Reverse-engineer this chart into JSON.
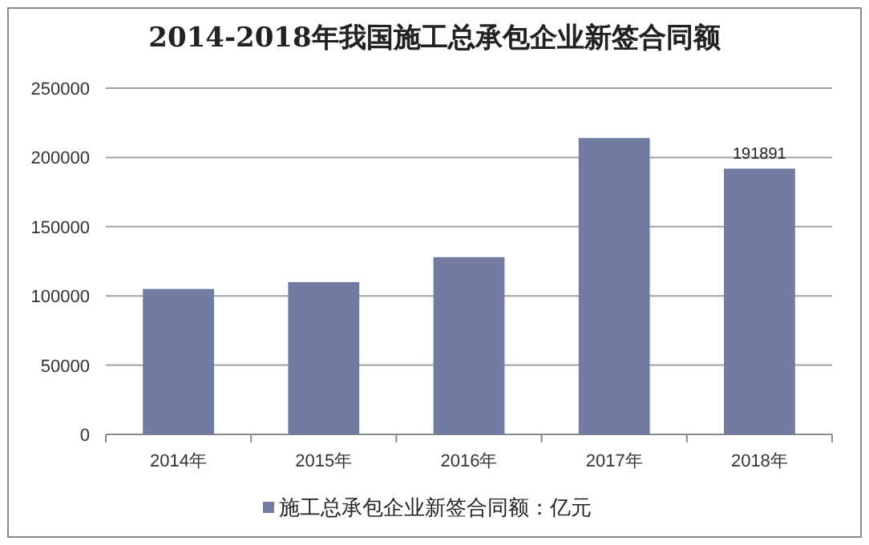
{
  "chart_data": {
    "type": "bar",
    "title": "2014-2018年我国施工总承包企业新签合同额",
    "categories": [
      "2014年",
      "2015年",
      "2016年",
      "2017年",
      "2018年"
    ],
    "series": [
      {
        "name": "施工总承包企业新签合同额：亿元",
        "color": "#727ca3",
        "values": [
          105000,
          110000,
          128000,
          214000,
          191891
        ],
        "value_labels": [
          null,
          null,
          null,
          null,
          "191891"
        ]
      }
    ],
    "ylim": [
      0,
      250000
    ],
    "yticks": [
      0,
      50000,
      100000,
      150000,
      200000,
      250000
    ],
    "grid": "y",
    "legend": "bottom"
  }
}
